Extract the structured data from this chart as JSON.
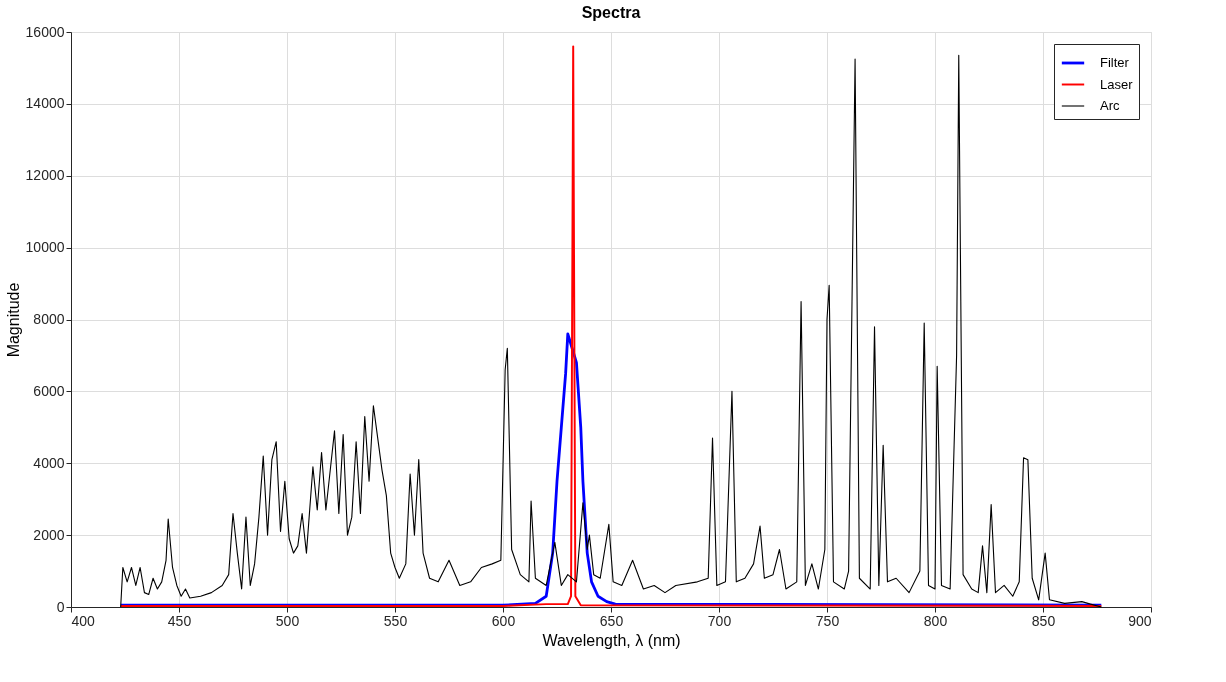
{
  "chart_data": {
    "type": "line",
    "title": "Spectra",
    "xlabel": "Wavelength, λ (nm)",
    "ylabel": "Magnitude",
    "xlim": [
      400,
      900
    ],
    "xticks": [
      400,
      450,
      500,
      550,
      600,
      650,
      700,
      750,
      800,
      850,
      900
    ],
    "ylim": [
      0,
      16000
    ],
    "yticks": [
      0,
      2000,
      4000,
      6000,
      8000,
      10000,
      12000,
      14000,
      16000
    ],
    "grid": true,
    "legend": "top right",
    "line_style": "solid",
    "marker": "none",
    "series": [
      {
        "name": "Filter",
        "color": "#0000ff",
        "x": [
          423,
          600,
          615,
          620,
          623,
          625,
          627,
          629,
          630,
          632,
          634,
          636,
          637,
          639,
          641,
          644,
          648,
          652,
          877
        ],
        "values": [
          50,
          50,
          100,
          300,
          1500,
          3500,
          5000,
          6500,
          7600,
          7200,
          6800,
          5000,
          3500,
          1500,
          700,
          300,
          150,
          80,
          50
        ]
      },
      {
        "name": "Laser",
        "color": "#ff0000",
        "x": [
          423,
          600,
          620,
          630,
          631.5,
          632.5,
          633.5,
          636,
          877
        ],
        "values": [
          30,
          30,
          80,
          80,
          300,
          15600,
          300,
          50,
          30
        ]
      },
      {
        "name": "Arc",
        "color": "#000000",
        "x": [
          423,
          424,
          426,
          428,
          430,
          432,
          434,
          436,
          438,
          440,
          442,
          444,
          445,
          447,
          449,
          451,
          453,
          455,
          460,
          465,
          470,
          473,
          475,
          477,
          479,
          481,
          483,
          485,
          487,
          489,
          491,
          493,
          495,
          497,
          499,
          501,
          503,
          505,
          507,
          509,
          512,
          514,
          516,
          518,
          520,
          522,
          524,
          526,
          528,
          530,
          532,
          534,
          536,
          538,
          540,
          542,
          544,
          546,
          548,
          550,
          552,
          555,
          557,
          559,
          561,
          563,
          566,
          570,
          575,
          580,
          585,
          590,
          595,
          599,
          601,
          602,
          604,
          608,
          612,
          613,
          615,
          620,
          624,
          627,
          630,
          634,
          637,
          639,
          640,
          642,
          645,
          649,
          651,
          655,
          660,
          665,
          670,
          675,
          680,
          690,
          695,
          697,
          699,
          703,
          706,
          708,
          712,
          716,
          719,
          721,
          725,
          728,
          731,
          736,
          738,
          740,
          743,
          746,
          749,
          750,
          751,
          753,
          758,
          760,
          763,
          765,
          770,
          772,
          774,
          776,
          778,
          782,
          788,
          793,
          795,
          797,
          800,
          801,
          803,
          807,
          810,
          811,
          813,
          817,
          820,
          822,
          824,
          826,
          828,
          832,
          836,
          839,
          841,
          843,
          845,
          848,
          851,
          853,
          860,
          868,
          872,
          877
        ],
        "values": [
          0,
          1100,
          700,
          1100,
          600,
          1100,
          400,
          350,
          800,
          500,
          700,
          1300,
          2450,
          1100,
          600,
          300,
          500,
          250,
          300,
          400,
          600,
          900,
          2600,
          1500,
          500,
          2500,
          600,
          1200,
          2500,
          4200,
          2000,
          4100,
          4600,
          2100,
          3500,
          1900,
          1500,
          1700,
          2600,
          1500,
          3900,
          2700,
          4300,
          2700,
          3800,
          4900,
          2600,
          4800,
          2000,
          2500,
          4600,
          2600,
          5300,
          3500,
          5600,
          4700,
          3800,
          3100,
          1500,
          1100,
          800,
          1200,
          3700,
          2000,
          4100,
          1500,
          800,
          700,
          1300,
          600,
          700,
          1100,
          1200,
          1300,
          6600,
          7200,
          1600,
          900,
          700,
          2950,
          800,
          600,
          1800,
          600,
          900,
          700,
          2900,
          1600,
          2000,
          900,
          800,
          2300,
          700,
          600,
          1300,
          500,
          600,
          400,
          600,
          700,
          800,
          4700,
          600,
          700,
          6000,
          700,
          800,
          1200,
          2250,
          800,
          900,
          1600,
          500,
          700,
          8500,
          600,
          1200,
          500,
          1600,
          8000,
          8950,
          700,
          500,
          1000,
          15250,
          800,
          500,
          7800,
          600,
          4500,
          700,
          800,
          400,
          1000,
          7900,
          600,
          500,
          6700,
          600,
          500,
          7000,
          15350,
          900,
          500,
          400,
          1700,
          400,
          2850,
          400,
          600,
          300,
          700,
          4150,
          4100,
          800,
          200,
          1500,
          200,
          100,
          150,
          80,
          0
        ]
      }
    ]
  }
}
